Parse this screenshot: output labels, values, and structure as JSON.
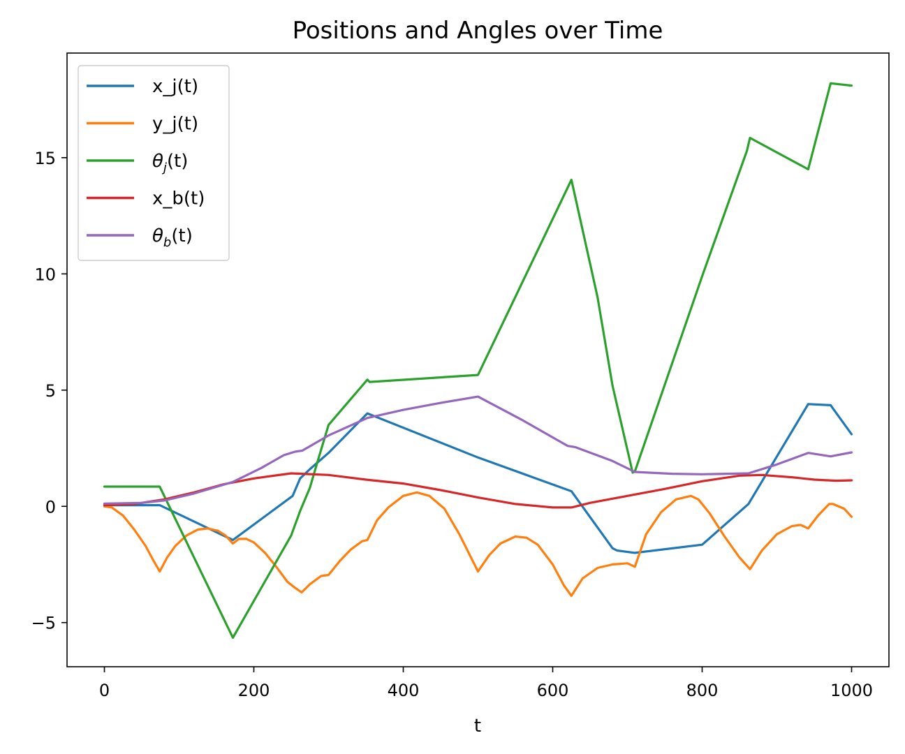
{
  "chart_data": {
    "type": "line",
    "title": "Positions and Angles over Time",
    "xlabel": "t",
    "ylabel": "",
    "xlim": [
      -50,
      1050
    ],
    "ylim": [
      -6.9,
      19.5
    ],
    "xticks": [
      0,
      200,
      400,
      600,
      800,
      1000
    ],
    "yticks": [
      -5,
      0,
      5,
      10,
      15
    ],
    "ytick_labels": [
      "−5",
      "0",
      "5",
      "10",
      "15"
    ],
    "grid": false,
    "legend_position": "top-left",
    "series": [
      {
        "name": "x_j(t)",
        "legend_base": "x_j",
        "legend_sub": "",
        "legend_suffix": "(t)",
        "color": "#1f77b4",
        "x": [
          0,
          74,
          172,
          252,
          262,
          275,
          300,
          352,
          500,
          625,
          680,
          686,
          710,
          800,
          862,
          942,
          972,
          1000
        ],
        "y": [
          0.05,
          0.05,
          -1.45,
          0.45,
          1.2,
          1.6,
          2.3,
          4.0,
          2.1,
          0.65,
          -1.8,
          -1.9,
          -2.0,
          -1.65,
          0.1,
          4.4,
          4.35,
          3.1
        ]
      },
      {
        "name": "y_j(t)",
        "legend_base": "y_j",
        "legend_sub": "",
        "legend_suffix": "(t)",
        "color": "#ff7f0e",
        "x": [
          0,
          10,
          25,
          40,
          55,
          65,
          74,
          84,
          95,
          110,
          125,
          138,
          152,
          162,
          172,
          180,
          190,
          200,
          215,
          230,
          245,
          255,
          264,
          275,
          290,
          300,
          315,
          330,
          345,
          352,
          365,
          380,
          400,
          418,
          435,
          455,
          475,
          500,
          515,
          530,
          550,
          565,
          580,
          600,
          615,
          625,
          640,
          660,
          680,
          700,
          710,
          725,
          745,
          765,
          785,
          795,
          810,
          830,
          850,
          864,
          880,
          900,
          920,
          932,
          942,
          955,
          970,
          975,
          990,
          1000
        ],
        "y": [
          0.0,
          -0.05,
          -0.4,
          -1.0,
          -1.7,
          -2.3,
          -2.8,
          -2.2,
          -1.7,
          -1.25,
          -1.0,
          -0.95,
          -1.05,
          -1.25,
          -1.6,
          -1.4,
          -1.4,
          -1.55,
          -2.0,
          -2.6,
          -3.25,
          -3.5,
          -3.7,
          -3.35,
          -3.0,
          -2.95,
          -2.35,
          -1.85,
          -1.5,
          -1.45,
          -0.6,
          -0.05,
          0.45,
          0.6,
          0.45,
          -0.1,
          -1.2,
          -2.8,
          -2.1,
          -1.6,
          -1.3,
          -1.35,
          -1.65,
          -2.5,
          -3.4,
          -3.85,
          -3.1,
          -2.65,
          -2.5,
          -2.45,
          -2.6,
          -1.2,
          -0.25,
          0.3,
          0.45,
          0.3,
          -0.3,
          -1.3,
          -2.2,
          -2.7,
          -1.9,
          -1.2,
          -0.85,
          -0.8,
          -0.95,
          -0.4,
          0.1,
          0.1,
          -0.1,
          -0.45
        ]
      },
      {
        "name": "θ_j(t)",
        "legend_base": "θ",
        "legend_sub": "j",
        "legend_suffix": "(t)",
        "color": "#2ca02c",
        "x": [
          0,
          74,
          172,
          250,
          262,
          275,
          285,
          300,
          352,
          355,
          500,
          625,
          660,
          680,
          707,
          710,
          800,
          860,
          864,
          942,
          972,
          1000
        ],
        "y": [
          0.85,
          0.85,
          -5.65,
          -1.25,
          -0.2,
          0.8,
          1.9,
          3.5,
          5.45,
          5.35,
          5.65,
          14.05,
          9.0,
          5.2,
          1.45,
          1.5,
          9.9,
          15.3,
          15.85,
          14.5,
          18.2,
          18.1
        ]
      },
      {
        "name": "x_b(t)",
        "legend_base": "x_b",
        "legend_sub": "",
        "legend_suffix": "(t)",
        "color": "#d62728",
        "x": [
          0,
          40,
          80,
          120,
          160,
          200,
          250,
          300,
          350,
          400,
          450,
          500,
          550,
          600,
          625,
          650,
          700,
          750,
          800,
          850,
          880,
          920,
          950,
          980,
          1000
        ],
        "y": [
          0.05,
          0.1,
          0.3,
          0.6,
          0.95,
          1.2,
          1.42,
          1.35,
          1.15,
          0.98,
          0.7,
          0.38,
          0.1,
          -0.05,
          -0.05,
          0.15,
          0.45,
          0.75,
          1.08,
          1.32,
          1.35,
          1.25,
          1.15,
          1.1,
          1.12
        ]
      },
      {
        "name": "θ_b(t)",
        "legend_base": "θ",
        "legend_sub": "b",
        "legend_suffix": "(t)",
        "color": "#9467bd",
        "x": [
          0,
          50,
          80,
          120,
          172,
          210,
          240,
          255,
          265,
          300,
          352,
          400,
          450,
          500,
          560,
          620,
          630,
          680,
          710,
          760,
          800,
          862,
          900,
          942,
          972,
          1000
        ],
        "y": [
          0.12,
          0.15,
          0.25,
          0.55,
          1.05,
          1.65,
          2.2,
          2.35,
          2.4,
          3.05,
          3.8,
          4.15,
          4.45,
          4.72,
          3.7,
          2.6,
          2.55,
          1.95,
          1.48,
          1.4,
          1.38,
          1.42,
          1.8,
          2.3,
          2.15,
          2.32
        ]
      }
    ]
  }
}
